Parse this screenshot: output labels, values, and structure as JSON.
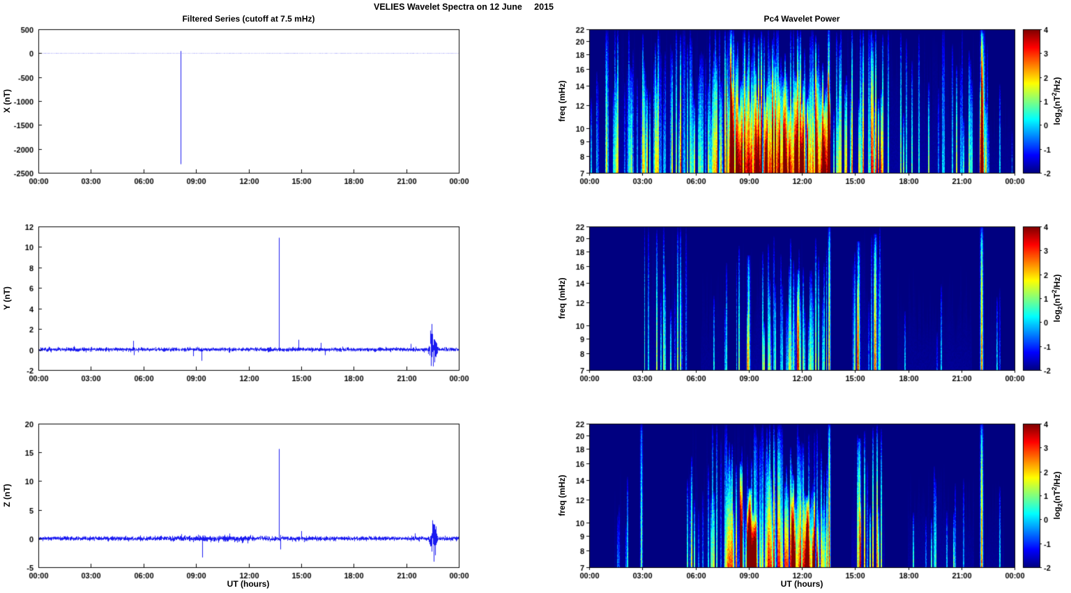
{
  "page": {
    "title": "VELIES Wavelet Spectra on 12 June     2015"
  },
  "colorbar": {
    "clim": [
      -2,
      4
    ],
    "ticks": [
      4,
      3,
      2,
      1,
      0,
      -1,
      -2
    ],
    "label_parts": {
      "pre": "log",
      "sub": "2",
      "mid": "(nT",
      "sup": "2",
      "post": "/Hz)"
    }
  },
  "chart_data": [
    {
      "id": "x-filtered-series",
      "type": "line",
      "title": "Filtered Series (cutoff at 7.5 mHz)",
      "ylabel": "X (nT)",
      "xlabel": "",
      "line_color": "#0000ee",
      "grid": false,
      "x_range_hours": [
        0,
        24
      ],
      "x_ticks": [
        "00:00",
        "03:00",
        "06:00",
        "09:00",
        "12:00",
        "15:00",
        "18:00",
        "21:00",
        "00:00"
      ],
      "ylim": [
        -2500,
        500
      ],
      "y_ticks": [
        500,
        0,
        -500,
        -1000,
        -1500,
        -2000,
        -2500
      ],
      "noise_amp": 2,
      "spikes": [
        {
          "t": 8.1,
          "peak": -2320
        },
        {
          "t": 8.1,
          "peak": 45
        }
      ],
      "bursts": []
    },
    {
      "id": "y-filtered-series",
      "type": "line",
      "title": "",
      "ylabel": "Y (nT)",
      "xlabel": "",
      "line_color": "#0000ee",
      "grid": false,
      "x_range_hours": [
        0,
        24
      ],
      "x_ticks": [
        "00:00",
        "03:00",
        "06:00",
        "09:00",
        "12:00",
        "15:00",
        "18:00",
        "21:00",
        "00:00"
      ],
      "ylim": [
        -2,
        12
      ],
      "y_ticks": [
        12,
        10,
        8,
        6,
        4,
        2,
        0,
        -2
      ],
      "noise_amp": 0.15,
      "spikes": [
        {
          "t": 5.4,
          "peak": 0.85
        },
        {
          "t": 5.45,
          "peak": -0.55
        },
        {
          "t": 8.85,
          "peak": -0.65
        },
        {
          "t": 9.3,
          "peak": -1.1
        },
        {
          "t": 13.75,
          "peak": 10.9
        },
        {
          "t": 14.85,
          "peak": 0.95
        },
        {
          "t": 16.1,
          "peak": 0.65
        },
        {
          "t": 16.35,
          "peak": -0.55
        },
        {
          "t": 21.25,
          "peak": 0.55
        }
      ],
      "bursts": [
        {
          "t0": 22.25,
          "t1": 22.8,
          "amp": 2.0
        }
      ]
    },
    {
      "id": "z-filtered-series",
      "type": "line",
      "title": "",
      "ylabel": "Z (nT)",
      "xlabel": "UT (hours)",
      "line_color": "#0000ee",
      "grid": false,
      "x_range_hours": [
        0,
        24
      ],
      "x_ticks": [
        "00:00",
        "03:00",
        "06:00",
        "09:00",
        "12:00",
        "15:00",
        "18:00",
        "21:00",
        "00:00"
      ],
      "ylim": [
        -5,
        20
      ],
      "y_ticks": [
        20,
        15,
        10,
        5,
        0,
        -5
      ],
      "noise_amp": 0.3,
      "spikes": [
        {
          "t": 9.35,
          "peak": -3.3
        },
        {
          "t": 13.75,
          "peak": 15.6
        },
        {
          "t": 13.8,
          "peak": -1.9
        },
        {
          "t": 15.0,
          "peak": 1.3
        },
        {
          "t": 21.5,
          "peak": 0.9
        }
      ],
      "bursts": [
        {
          "t0": 22.3,
          "t1": 22.8,
          "amp": 2.3
        },
        {
          "t0": 7.0,
          "t1": 13.5,
          "amp": 0.12
        }
      ]
    },
    {
      "id": "pc4-wavelet-power-x",
      "type": "heatmap",
      "title": "Pc4 Wavelet Power",
      "ylabel": "freq (mHz)",
      "xlabel": "",
      "x_range_hours": [
        0,
        24
      ],
      "x_ticks": [
        "00:00",
        "03:00",
        "06:00",
        "09:00",
        "12:00",
        "15:00",
        "18:00",
        "21:00",
        "00:00"
      ],
      "freq_range": [
        7,
        22
      ],
      "freq_ticks": [
        22,
        20,
        18,
        16,
        14,
        12,
        10,
        9,
        8,
        7
      ],
      "clim": [
        -2,
        4
      ],
      "regions": [
        {
          "t0": 0.0,
          "t1": 0.9,
          "density": 0.15,
          "amp": 2.2,
          "f_top": 0.6
        },
        {
          "t0": 0.9,
          "t1": 4.2,
          "density": 0.5,
          "amp": 3.8,
          "f_top": 1.0
        },
        {
          "t0": 4.2,
          "t1": 7.75,
          "density": 0.6,
          "amp": 4.3,
          "f_top": 1.0
        },
        {
          "t0": 7.75,
          "t1": 13.6,
          "density": 0.97,
          "amp": 6.0,
          "f_top": 1.0,
          "base": 1.6,
          "base_f_top": 0.75
        },
        {
          "t0": 13.6,
          "t1": 14.4,
          "density": 0.5,
          "amp": 4.0,
          "f_top": 0.9
        },
        {
          "t0": 14.4,
          "t1": 16.9,
          "density": 0.65,
          "amp": 5.3,
          "f_top": 1.0
        },
        {
          "t0": 16.9,
          "t1": 21.8,
          "density": 0.32,
          "amp": 3.4,
          "f_top": 0.85
        },
        {
          "t0": 21.9,
          "t1": 22.5,
          "density": 0.6,
          "amp": 4.2,
          "f_top": 1.0
        },
        {
          "t0": 22.5,
          "t1": 23.9,
          "density": 0.15,
          "amp": 2.2,
          "f_top": 0.5
        }
      ],
      "lines": [
        {
          "t": 8.0,
          "w": 0.05,
          "amp": 5.5,
          "f_top": 1.0
        },
        {
          "t": 13.52,
          "w": 0.04,
          "amp": 5.0,
          "f_top": 1.0
        },
        {
          "t": 22.15,
          "w": 0.05,
          "amp": 5.2,
          "f_top": 1.0
        }
      ]
    },
    {
      "id": "pc4-wavelet-power-y",
      "type": "heatmap",
      "title": "",
      "ylabel": "freq (mHz)",
      "xlabel": "",
      "x_range_hours": [
        0,
        24
      ],
      "x_ticks": [
        "00:00",
        "03:00",
        "06:00",
        "09:00",
        "12:00",
        "15:00",
        "18:00",
        "21:00",
        "00:00"
      ],
      "freq_range": [
        7,
        22
      ],
      "freq_ticks": [
        22,
        20,
        18,
        16,
        14,
        12,
        10,
        9,
        8,
        7
      ],
      "clim": [
        -2,
        4
      ],
      "regions": [
        {
          "t0": 3.1,
          "t1": 5.6,
          "density": 0.42,
          "amp": 3.0,
          "f_top": 0.9
        },
        {
          "t0": 6.3,
          "t1": 7.8,
          "density": 0.2,
          "amp": 2.2,
          "f_top": 0.6
        },
        {
          "t0": 8.3,
          "t1": 13.4,
          "density": 0.45,
          "amp": 3.2,
          "f_top": 0.75
        },
        {
          "t0": 14.8,
          "t1": 16.6,
          "density": 0.5,
          "amp": 3.8,
          "f_top": 0.9
        },
        {
          "t0": 17.4,
          "t1": 21.6,
          "density": 0.18,
          "amp": 2.4,
          "f_top": 0.6
        },
        {
          "t0": 22.4,
          "t1": 23.2,
          "density": 0.15,
          "amp": 2.0,
          "f_top": 0.5
        }
      ],
      "lines": [
        {
          "t": 9.0,
          "w": 0.05,
          "amp": 3.8,
          "f_top": 0.8
        },
        {
          "t": 11.8,
          "w": 0.05,
          "amp": 3.6,
          "f_top": 0.7
        },
        {
          "t": 13.55,
          "w": 0.04,
          "amp": 4.8,
          "f_top": 1.0
        },
        {
          "t": 15.2,
          "w": 0.05,
          "amp": 4.0,
          "f_top": 0.9
        },
        {
          "t": 16.15,
          "w": 0.05,
          "amp": 4.4,
          "f_top": 0.95
        },
        {
          "t": 22.15,
          "w": 0.05,
          "amp": 5.0,
          "f_top": 1.0
        }
      ]
    },
    {
      "id": "pc4-wavelet-power-z",
      "type": "heatmap",
      "title": "",
      "ylabel": "freq (mHz)",
      "xlabel": "UT (hours)",
      "x_range_hours": [
        0,
        24
      ],
      "x_ticks": [
        "00:00",
        "03:00",
        "06:00",
        "09:00",
        "12:00",
        "15:00",
        "18:00",
        "21:00",
        "00:00"
      ],
      "freq_range": [
        7,
        22
      ],
      "freq_ticks": [
        22,
        20,
        18,
        16,
        14,
        12,
        10,
        9,
        8,
        7
      ],
      "clim": [
        -2,
        4
      ],
      "regions": [
        {
          "t0": 1.4,
          "t1": 2.2,
          "density": 0.18,
          "amp": 2.2,
          "f_top": 0.6
        },
        {
          "t0": 5.5,
          "t1": 7.6,
          "density": 0.4,
          "amp": 3.4,
          "f_top": 0.9
        },
        {
          "t0": 7.6,
          "t1": 13.5,
          "density": 0.7,
          "amp": 4.4,
          "f_top": 0.92,
          "base": 0.8,
          "base_f_top": 0.5
        },
        {
          "t0": 8.5,
          "t1": 9.5,
          "density": 0.8,
          "amp": 5.2,
          "f_top": 0.6
        },
        {
          "t0": 11.4,
          "t1": 12.9,
          "density": 0.75,
          "amp": 5.0,
          "f_top": 0.55
        },
        {
          "t0": 14.8,
          "t1": 16.7,
          "density": 0.5,
          "amp": 4.2,
          "f_top": 0.85
        },
        {
          "t0": 18.0,
          "t1": 21.7,
          "density": 0.22,
          "amp": 3.0,
          "f_top": 0.6
        },
        {
          "t0": 22.4,
          "t1": 23.4,
          "density": 0.15,
          "amp": 2.2,
          "f_top": 0.5
        }
      ],
      "lines": [
        {
          "t": 2.95,
          "w": 0.04,
          "amp": 3.2,
          "f_top": 1.0
        },
        {
          "t": 9.05,
          "w": 0.06,
          "amp": 5.4,
          "f_top": 0.55
        },
        {
          "t": 12.3,
          "w": 0.06,
          "amp": 5.0,
          "f_top": 0.5
        },
        {
          "t": 13.55,
          "w": 0.04,
          "amp": 5.4,
          "f_top": 1.0
        },
        {
          "t": 15.25,
          "w": 0.05,
          "amp": 4.4,
          "f_top": 0.9
        },
        {
          "t": 22.15,
          "w": 0.05,
          "amp": 5.0,
          "f_top": 1.0
        }
      ]
    }
  ]
}
